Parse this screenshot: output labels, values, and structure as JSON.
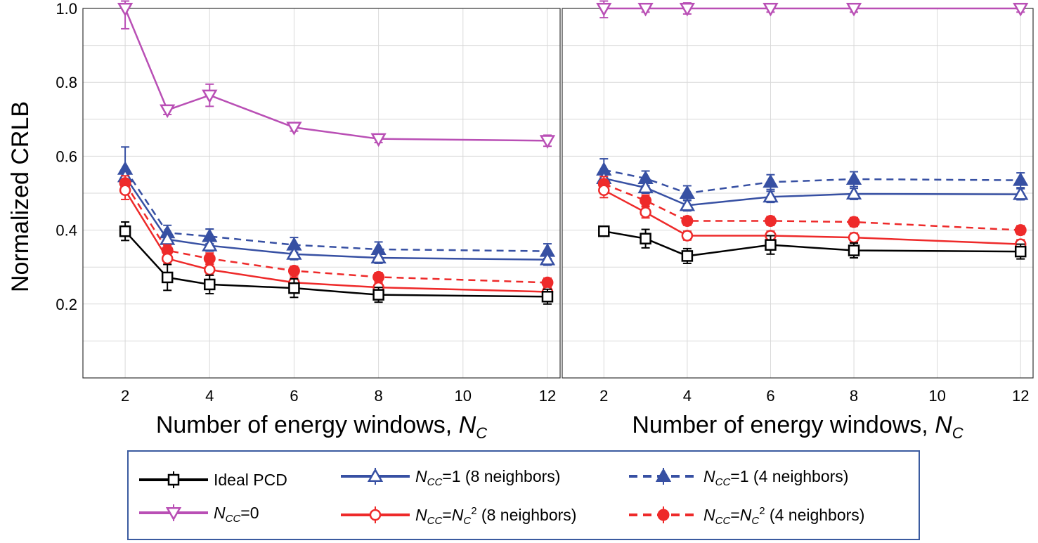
{
  "chart_data": {
    "type": "line",
    "ylabel": "Normalized CRLB",
    "ylim": [
      0.0,
      1.0
    ],
    "yticks": [
      "0.2",
      "0.4",
      "0.6",
      "0.8",
      "1.0"
    ],
    "grid": true,
    "xticks": [
      "2",
      "4",
      "6",
      "8",
      "10",
      "12"
    ],
    "x": [
      2,
      3,
      4,
      6,
      8,
      12
    ],
    "legend_position": "bottom",
    "legend": [
      {
        "id": "ideal",
        "label": "Ideal PCD",
        "color": "#000000",
        "marker": "square-open",
        "dash": false
      },
      {
        "id": "ncc0",
        "prefix": "N",
        "sub": "CC",
        "rest": "=0",
        "color": "#B94FB5",
        "marker": "triangle-down-open",
        "dash": false
      },
      {
        "id": "ncc1_8",
        "prefix": "N",
        "sub": "CC",
        "rest": "=1 (8 neighbors)",
        "color": "#3750A3",
        "marker": "triangle-up-open",
        "dash": false
      },
      {
        "id": "nccnc_8",
        "prefix": "N",
        "sub": "CC",
        "mid": "=N",
        "sub2": "C",
        "sup": "2",
        "rest": " (8 neighbors)",
        "color": "#EE2A2A",
        "marker": "circle-open",
        "dash": false
      },
      {
        "id": "ncc1_4",
        "prefix": "N",
        "sub": "CC",
        "rest": "=1 (4 neighbors)",
        "color": "#3750A3",
        "marker": "triangle-up-filled",
        "dash": true
      },
      {
        "id": "nccnc_4",
        "prefix": "N",
        "sub": "CC",
        "mid": "=N",
        "sub2": "C",
        "sup": "2",
        "rest": " (4 neighbors)",
        "color": "#EE2A2A",
        "marker": "circle-filled",
        "dash": true
      }
    ],
    "panels": [
      {
        "xlabel": "Number of energy windows, ",
        "xlabel_var": "N",
        "xlabel_sub": "C",
        "series": [
          {
            "id": "ncc0",
            "values": [
              1.0,
              0.725,
              0.765,
              0.678,
              0.647,
              0.642
            ],
            "err": [
              0.055,
              0.012,
              0.03,
              0.01,
              0.01,
              0.015
            ]
          },
          {
            "id": "ncc1_4",
            "values": [
              0.565,
              0.393,
              0.383,
              0.36,
              0.348,
              0.343
            ],
            "err": [
              0.06,
              0.02,
              0.02,
              0.02,
              0.02,
              0.02
            ]
          },
          {
            "id": "ncc1_8",
            "values": [
              0.545,
              0.375,
              0.358,
              0.335,
              0.325,
              0.32
            ],
            "err": [
              0.02,
              0.015,
              0.015,
              0.015,
              0.015,
              0.015
            ]
          },
          {
            "id": "nccnc_4",
            "values": [
              0.527,
              0.345,
              0.323,
              0.29,
              0.273,
              0.258
            ],
            "err": [
              0.02,
              0.015,
              0.015,
              0.012,
              0.012,
              0.012
            ]
          },
          {
            "id": "nccnc_8",
            "values": [
              0.508,
              0.323,
              0.293,
              0.258,
              0.245,
              0.233
            ],
            "err": [
              0.025,
              0.015,
              0.015,
              0.015,
              0.012,
              0.012
            ]
          },
          {
            "id": "ideal",
            "values": [
              0.397,
              0.272,
              0.253,
              0.243,
              0.225,
              0.22
            ],
            "err": [
              0.025,
              0.035,
              0.025,
              0.025,
              0.02,
              0.02
            ]
          }
        ]
      },
      {
        "xlabel": "Number of energy windows, ",
        "xlabel_var": "N",
        "xlabel_sub": "C",
        "series": [
          {
            "id": "ncc0",
            "values": [
              1.0,
              1.0,
              1.0,
              1.0,
              1.0,
              1.0
            ],
            "err": [
              0.025,
              0.01,
              0.015,
              0.01,
              0.01,
              0.01
            ]
          },
          {
            "id": "ncc1_4",
            "values": [
              0.563,
              0.54,
              0.5,
              0.53,
              0.538,
              0.535
            ],
            "err": [
              0.03,
              0.02,
              0.02,
              0.02,
              0.02,
              0.02
            ]
          },
          {
            "id": "ncc1_8",
            "values": [
              0.54,
              0.515,
              0.467,
              0.49,
              0.498,
              0.497
            ],
            "err": [
              0.02,
              0.015,
              0.015,
              0.015,
              0.015,
              0.015
            ]
          },
          {
            "id": "nccnc_4",
            "values": [
              0.525,
              0.48,
              0.425,
              0.425,
              0.422,
              0.4
            ],
            "err": [
              0.02,
              0.015,
              0.012,
              0.012,
              0.012,
              0.012
            ]
          },
          {
            "id": "nccnc_8",
            "values": [
              0.508,
              0.448,
              0.385,
              0.385,
              0.38,
              0.362
            ],
            "err": [
              0.02,
              0.015,
              0.012,
              0.012,
              0.012,
              0.012
            ]
          },
          {
            "id": "ideal",
            "values": [
              0.397,
              0.377,
              0.33,
              0.36,
              0.345,
              0.342
            ],
            "err": [
              0.01,
              0.025,
              0.02,
              0.025,
              0.02,
              0.02
            ]
          }
        ]
      }
    ]
  }
}
